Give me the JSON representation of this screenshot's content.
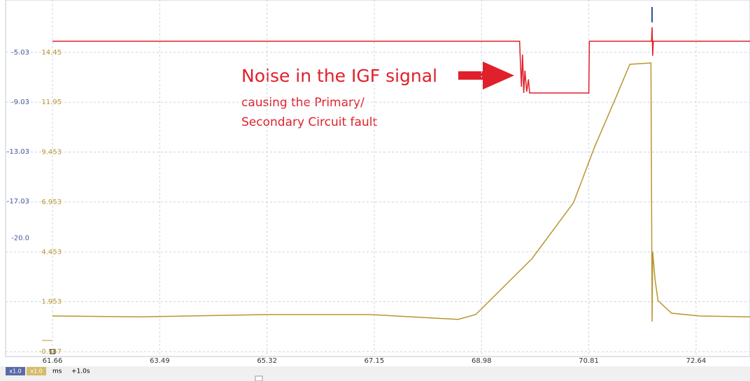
{
  "chart_data": {
    "type": "line",
    "annotations": [
      "Noise in the IGF signal",
      "causing the Primary/",
      "Secondary Circuit fault"
    ],
    "xlim": [
      61.66,
      73.56
    ],
    "xticks": [
      61.66,
      63.49,
      65.32,
      67.15,
      68.98,
      70.81,
      72.64
    ],
    "ylim": [
      -0.79,
      16.72
    ],
    "yticks": [
      14.45,
      11.95,
      9.453,
      6.953,
      4.453,
      1.953,
      -0.547
    ],
    "y2lim": [
      -29.54,
      -1.37
    ],
    "y2ticks": [
      -5.03,
      -9.03,
      -13.03,
      -17.03,
      {
        "value": -20,
        "label": "-20.0"
      }
    ],
    "ycolor": "#b8962e",
    "y2color": "#4a5a9a",
    "grid": true,
    "series": [
      {
        "color": "#e0202a",
        "axis": "y2",
        "x": [
          61.66,
          69.63,
          69.64,
          69.66,
          69.68,
          69.7,
          69.72,
          69.75,
          69.78,
          69.8,
          70.81,
          70.82,
          71.88,
          71.89,
          71.9,
          71.91,
          73.56
        ],
        "values": [
          -4.13,
          -4.13,
          -5.5,
          -7.8,
          -5.2,
          -8.3,
          -6.5,
          -8.2,
          -7.2,
          -8.3,
          -8.3,
          -4.13,
          -4.13,
          -3.0,
          -5.3,
          -4.13,
          -4.13
        ]
      },
      {
        "color": "#b8962e",
        "axis": "y",
        "x": [
          61.66,
          63.15,
          65.3,
          67.09,
          68.58,
          68.88,
          69.0,
          69.84,
          70.55,
          70.91,
          71.27,
          71.51,
          71.87,
          71.89,
          71.9,
          71.94,
          71.99,
          72.22,
          72.7,
          73.56
        ],
        "values": [
          1.24,
          1.2,
          1.31,
          1.31,
          1.07,
          1.31,
          1.66,
          4.11,
          6.92,
          9.72,
          12.17,
          13.85,
          13.92,
          0.96,
          4.46,
          3.06,
          2.01,
          1.38,
          1.24,
          1.2
        ]
      }
    ],
    "toolbar": {
      "scale1": "x1.0",
      "scale2": "x1.0",
      "unit": "ms",
      "offset": "+1.0s"
    }
  }
}
